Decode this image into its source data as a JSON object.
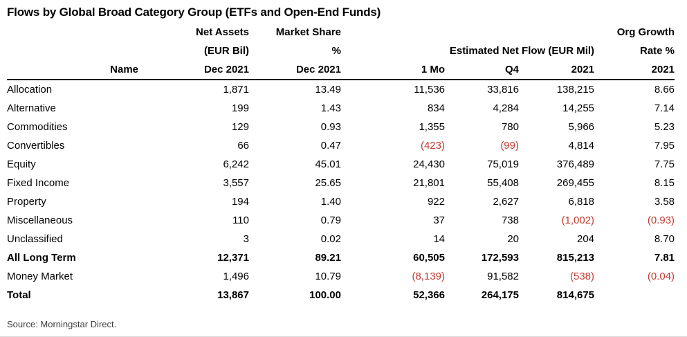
{
  "title": "Flows by Global Broad Category Group (ETFs and Open-End Funds)",
  "source": "Source: Morningstar Direct.",
  "colors": {
    "text": "#000000",
    "negative": "#c23b31",
    "header_rule": "#000000",
    "source_text": "#3d3d3d"
  },
  "table": {
    "header": {
      "name": "Name",
      "net_assets": {
        "line1": "Net Assets",
        "line2": "(EUR Bil)",
        "line3": "Dec 2021"
      },
      "market_share": {
        "line1": "Market Share",
        "line2": "%",
        "line3": "Dec 2021"
      },
      "flow_group": "Estimated Net Flow (EUR Mil)",
      "flow_cols": [
        "1 Mo",
        "Q4",
        "2021"
      ],
      "org_growth": {
        "line1": "Org Growth",
        "line2": "Rate %",
        "line3": "2021"
      }
    },
    "rows": [
      {
        "name": "Allocation",
        "bold": false,
        "values": [
          "1,871",
          "13.49",
          "11,536",
          "33,816",
          "138,215",
          "8.66"
        ]
      },
      {
        "name": "Alternative",
        "bold": false,
        "values": [
          "199",
          "1.43",
          "834",
          "4,284",
          "14,255",
          "7.14"
        ]
      },
      {
        "name": "Commodities",
        "bold": false,
        "values": [
          "129",
          "0.93",
          "1,355",
          "780",
          "5,966",
          "5.23"
        ]
      },
      {
        "name": "Convertibles",
        "bold": false,
        "values": [
          "66",
          "0.47",
          "(423)",
          "(99)",
          "4,814",
          "7.95"
        ]
      },
      {
        "name": "Equity",
        "bold": false,
        "values": [
          "6,242",
          "45.01",
          "24,430",
          "75,019",
          "376,489",
          "7.75"
        ]
      },
      {
        "name": "Fixed Income",
        "bold": false,
        "values": [
          "3,557",
          "25.65",
          "21,801",
          "55,408",
          "269,455",
          "8.15"
        ]
      },
      {
        "name": "Property",
        "bold": false,
        "values": [
          "194",
          "1.40",
          "922",
          "2,627",
          "6,818",
          "3.58"
        ]
      },
      {
        "name": "Miscellaneous",
        "bold": false,
        "values": [
          "110",
          "0.79",
          "37",
          "738",
          "(1,002)",
          "(0.93)"
        ]
      },
      {
        "name": "Unclassified",
        "bold": false,
        "values": [
          "3",
          "0.02",
          "14",
          "20",
          "204",
          "8.70"
        ]
      },
      {
        "name": "All Long Term",
        "bold": true,
        "values": [
          "12,371",
          "89.21",
          "60,505",
          "172,593",
          "815,213",
          "7.81"
        ]
      },
      {
        "name": "Money Market",
        "bold": false,
        "values": [
          "1,496",
          "10.79",
          "(8,139)",
          "91,582",
          "(538)",
          "(0.04)"
        ]
      },
      {
        "name": "Total",
        "bold": true,
        "values": [
          "13,867",
          "100.00",
          "52,366",
          "264,175",
          "814,675",
          ""
        ]
      }
    ]
  }
}
